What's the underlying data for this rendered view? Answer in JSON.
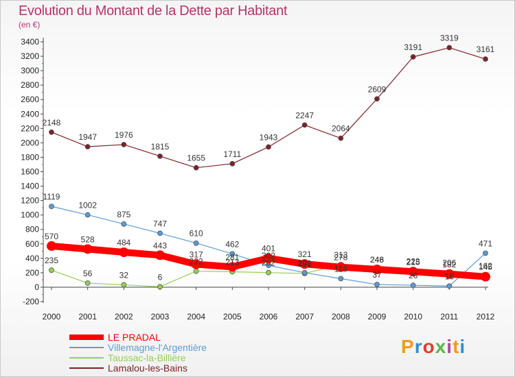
{
  "title": "Evolution du Montant de la Dette par Habitant",
  "subtitle": "(en €)",
  "brand": "Proxiti",
  "chart_data": {
    "type": "line",
    "title": "Evolution du Montant de la Dette par Habitant",
    "subtitle": "(en €)",
    "x": [
      "2000",
      "2001",
      "2002",
      "2003",
      "2004",
      "2005",
      "2006",
      "2007",
      "2008",
      "2009",
      "2010",
      "2011",
      "2012"
    ],
    "ylim": [
      -200,
      3400
    ],
    "ytick_step": 200,
    "grid": false,
    "legend_position": "bottom-left",
    "series": [
      {
        "name": "LE PRADAL",
        "color": "#ff0000",
        "values": [
          570,
          528,
          484,
          443,
          317,
          281,
          401,
          321,
          278,
          246,
          215,
          182,
          145
        ]
      },
      {
        "name": "Villemagne-l'Argentière",
        "color": "#5b9bd5",
        "values": [
          1119,
          1002,
          875,
          747,
          610,
          462,
          302,
          201,
          118,
          37,
          26,
          16,
          471
        ]
      },
      {
        "name": "Taussac-la-Billière",
        "color": "#92d050",
        "values": [
          235,
          56,
          32,
          6,
          222,
          213,
          202,
          190,
          313,
          248,
          223,
          206,
          162
        ]
      },
      {
        "name": "Lamalou-les-Bains",
        "color": "#7b2226",
        "values": [
          2148,
          1947,
          1976,
          1815,
          1655,
          1711,
          1943,
          2247,
          2064,
          2609,
          3191,
          3319,
          3161
        ]
      }
    ]
  }
}
